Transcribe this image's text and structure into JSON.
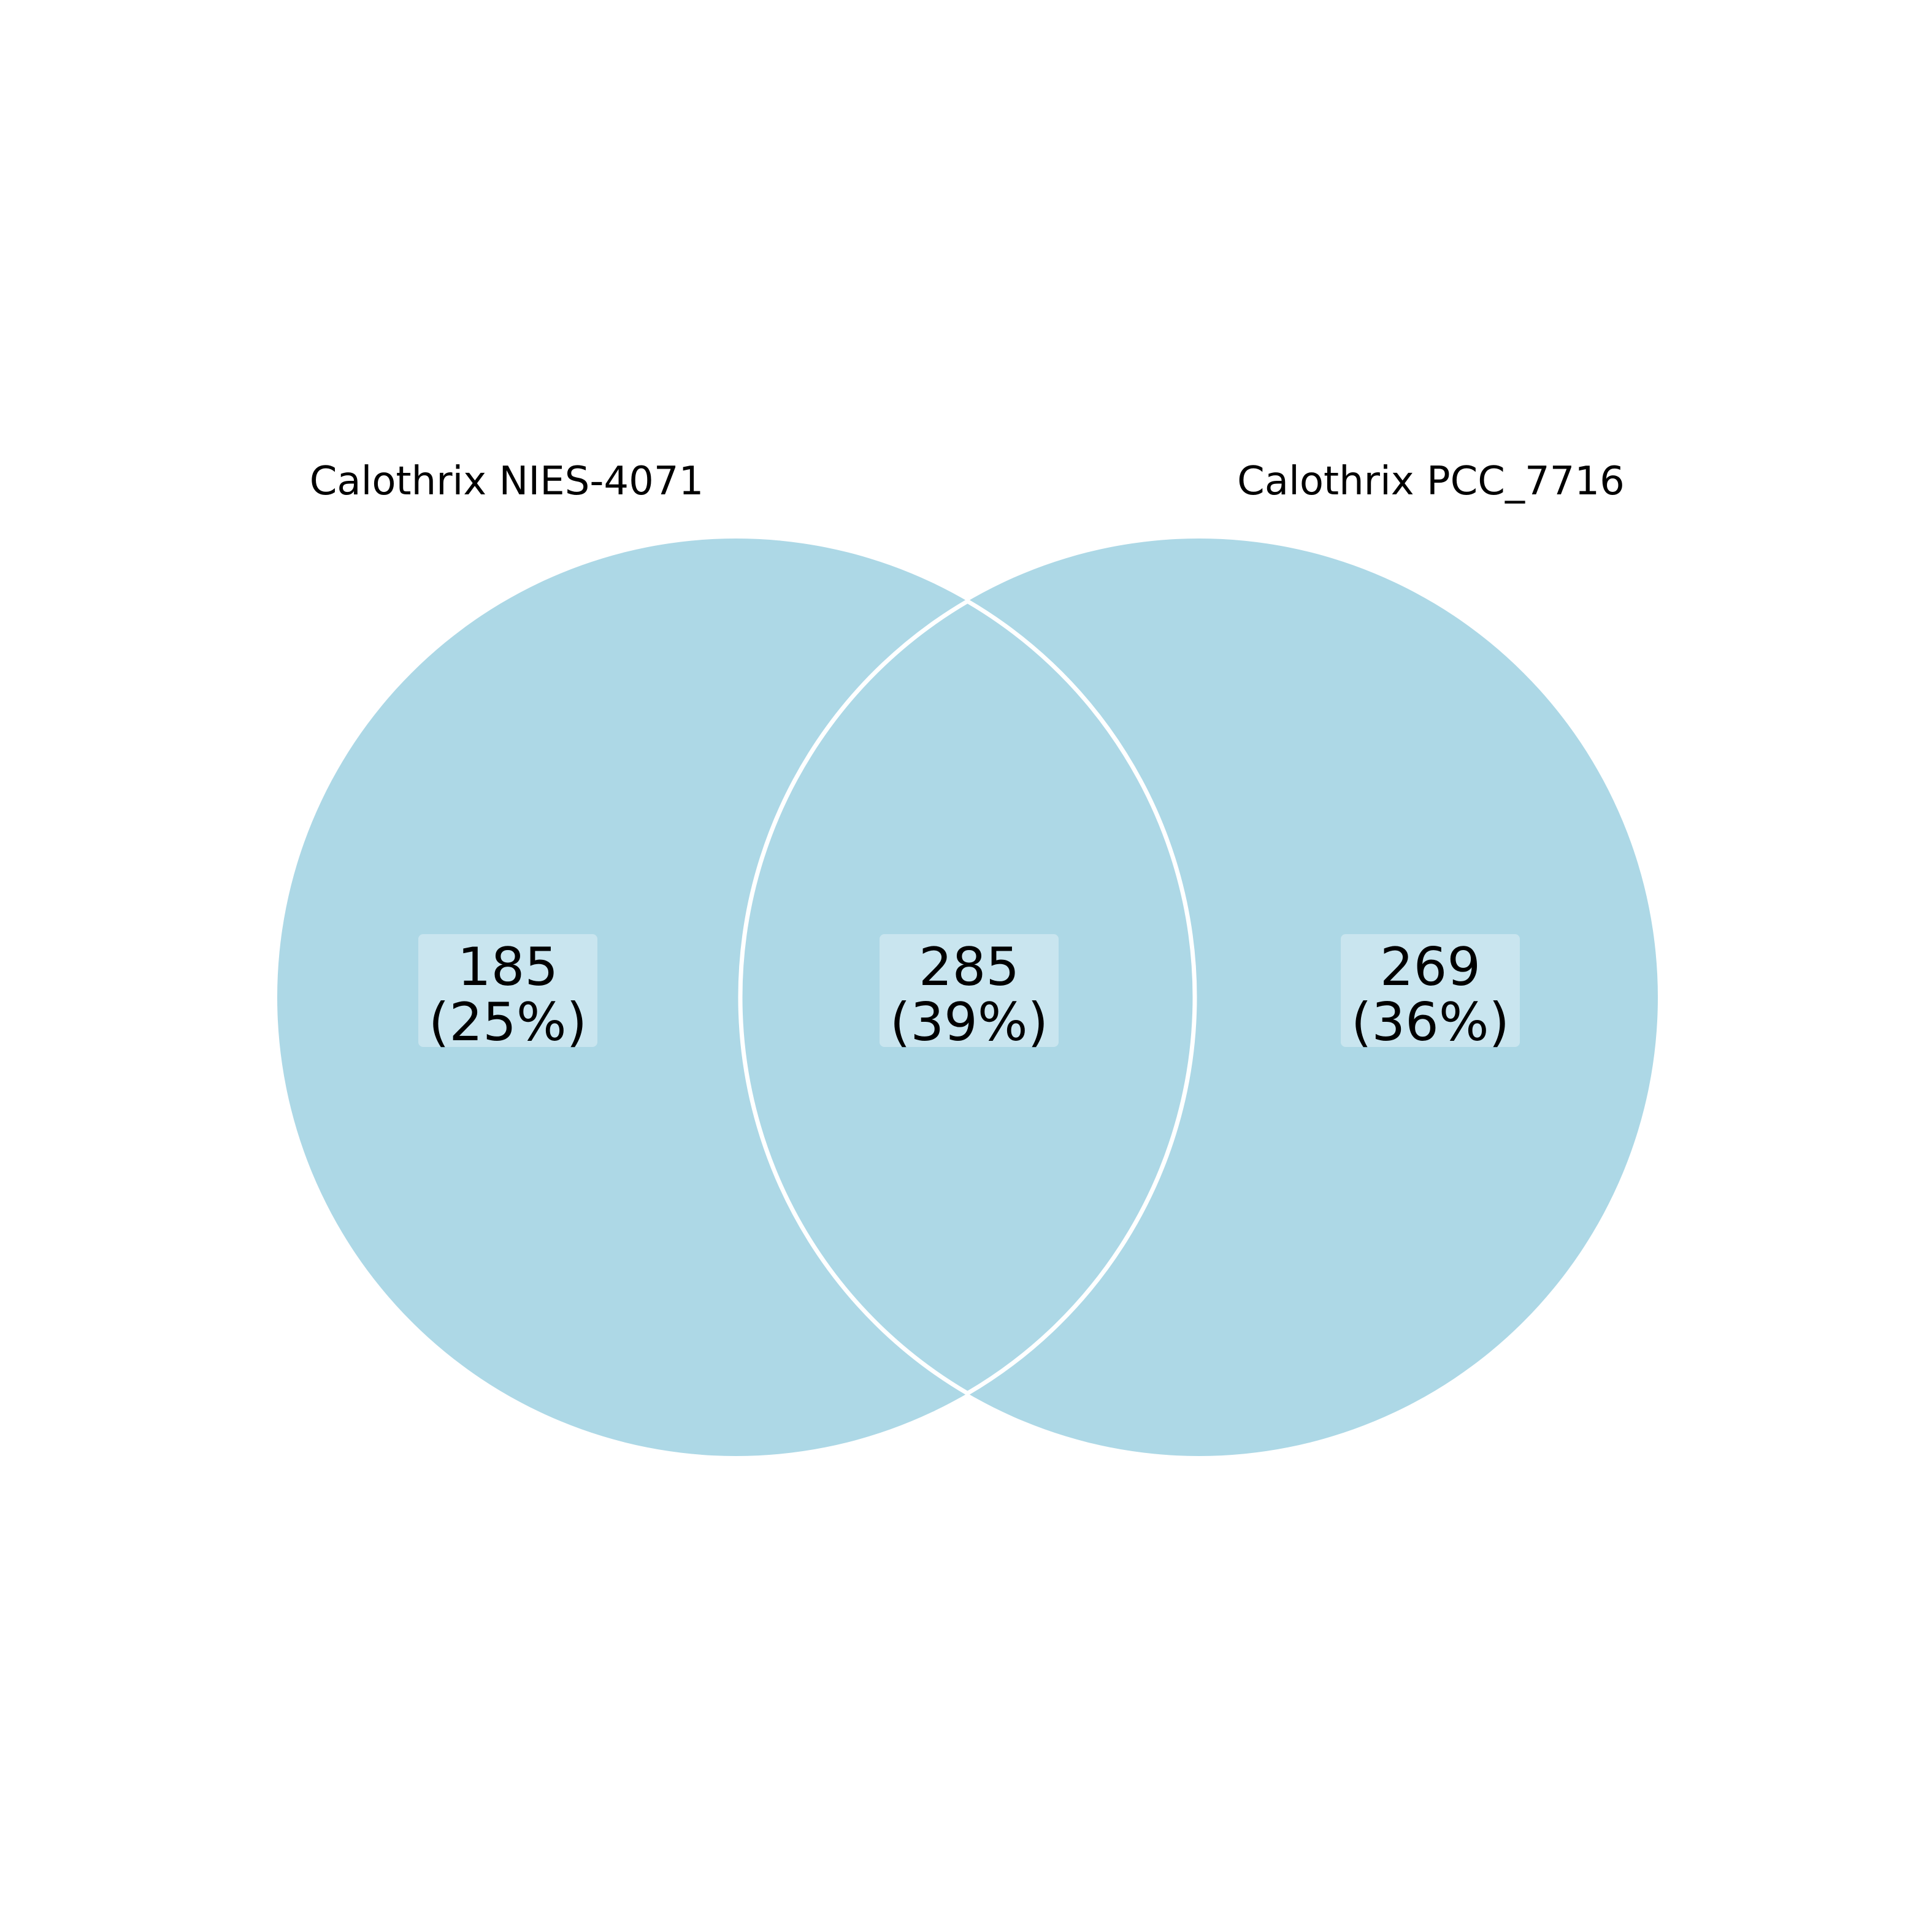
{
  "diagram": {
    "type": "venn2",
    "fill_color": "#add8e6",
    "outline_color": "#ffffff",
    "sets": [
      {
        "id": "left",
        "label": "Calothrix NIES-4071"
      },
      {
        "id": "right",
        "label": "Calothrix PCC_7716"
      }
    ],
    "regions": [
      {
        "id": "left-only",
        "count": "185",
        "percent": "(25%)"
      },
      {
        "id": "shared",
        "count": "285",
        "percent": "(39%)"
      },
      {
        "id": "right-only",
        "count": "269",
        "percent": "(36%)"
      }
    ]
  }
}
